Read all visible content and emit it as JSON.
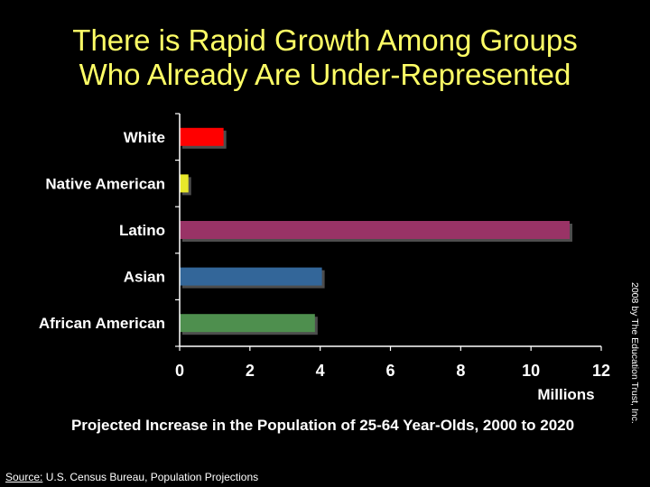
{
  "slide": {
    "title_line1": "There is Rapid Growth Among Groups",
    "title_line2": "Who Already Are Under-Represented",
    "copyright": "2008 by The Education Trust, Inc.",
    "source_label": "Source:",
    "source_text": " U.S. Census Bureau, Population Projections"
  },
  "chart_data": {
    "type": "bar",
    "orientation": "horizontal",
    "title": "Projected Increase in the Population of 25-64 Year-Olds, 2000 to 2020",
    "xlabel": "Millions",
    "ylabel": "",
    "categories": [
      "White",
      "Native American",
      "Latino",
      "Asian",
      "African American"
    ],
    "values": [
      1.25,
      0.25,
      11.1,
      4.05,
      3.85
    ],
    "colors": [
      "#ff0000",
      "#e8e82a",
      "#993366",
      "#336699",
      "#4e8f4e"
    ],
    "xlim": [
      0,
      12
    ],
    "xticks": [
      "0",
      "2",
      "4",
      "6",
      "8",
      "10",
      "12"
    ],
    "grid": false,
    "legend": "none"
  }
}
